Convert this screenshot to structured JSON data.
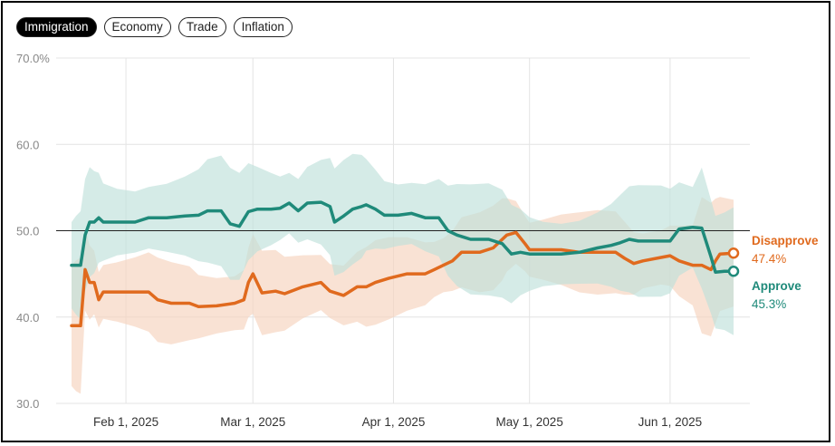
{
  "tabs": [
    {
      "label": "Immigration",
      "active": true
    },
    {
      "label": "Economy",
      "active": false
    },
    {
      "label": "Trade",
      "active": false
    },
    {
      "label": "Inflation",
      "active": false
    }
  ],
  "colors": {
    "approve": "#1f8a7a",
    "disapprove": "#e06a1e",
    "approve_band": "#bfe0da",
    "disapprove_band": "#f6d3bd"
  },
  "chart_data": {
    "type": "line",
    "title": "",
    "y_ticks": [
      "70.0%",
      "60.0",
      "50.0",
      "40.0",
      "30.0"
    ],
    "ylim": [
      30,
      70
    ],
    "x_ticks": [
      "Feb 1, 2025",
      "Mar 1, 2025",
      "Apr 1, 2025",
      "May 1, 2025",
      "Jun 1, 2025"
    ],
    "xlim": [
      "2025-01-20",
      "2025-06-17"
    ],
    "reference_line": 50,
    "grid": true,
    "series": [
      {
        "name": "Disapprove",
        "final_label": "47.4%",
        "points": [
          [
            "2025-01-20",
            39
          ],
          [
            "2025-01-21",
            39
          ],
          [
            "2025-01-22",
            39
          ],
          [
            "2025-01-23",
            45.5
          ],
          [
            "2025-01-24",
            44
          ],
          [
            "2025-01-25",
            44
          ],
          [
            "2025-01-26",
            42
          ],
          [
            "2025-01-27",
            42.9
          ],
          [
            "2025-01-30",
            42.9
          ],
          [
            "2025-02-03",
            42.9
          ],
          [
            "2025-02-06",
            42.9
          ],
          [
            "2025-02-08",
            42
          ],
          [
            "2025-02-11",
            41.6
          ],
          [
            "2025-02-15",
            41.6
          ],
          [
            "2025-02-17",
            41.2
          ],
          [
            "2025-02-21",
            41.3
          ],
          [
            "2025-02-25",
            41.6
          ],
          [
            "2025-02-27",
            42
          ],
          [
            "2025-02-28",
            44
          ],
          [
            "2025-03-01",
            45
          ],
          [
            "2025-03-03",
            42.8
          ],
          [
            "2025-03-06",
            43
          ],
          [
            "2025-03-08",
            42.7
          ],
          [
            "2025-03-12",
            43.5
          ],
          [
            "2025-03-16",
            44
          ],
          [
            "2025-03-18",
            43
          ],
          [
            "2025-03-21",
            42.5
          ],
          [
            "2025-03-24",
            43.5
          ],
          [
            "2025-03-26",
            43.5
          ],
          [
            "2025-03-28",
            44
          ],
          [
            "2025-03-31",
            44.5
          ],
          [
            "2025-04-04",
            45
          ],
          [
            "2025-04-08",
            45
          ],
          [
            "2025-04-10",
            45.5
          ],
          [
            "2025-04-12",
            46
          ],
          [
            "2025-04-14",
            46.5
          ],
          [
            "2025-04-16",
            47.5
          ],
          [
            "2025-04-20",
            47.5
          ],
          [
            "2025-04-23",
            48
          ],
          [
            "2025-04-25",
            49
          ],
          [
            "2025-04-26",
            49.5
          ],
          [
            "2025-04-28",
            49.8
          ],
          [
            "2025-04-30",
            48.5
          ],
          [
            "2025-05-01",
            47.8
          ],
          [
            "2025-05-04",
            47.8
          ],
          [
            "2025-05-08",
            47.8
          ],
          [
            "2025-05-12",
            47.5
          ],
          [
            "2025-05-16",
            47.5
          ],
          [
            "2025-05-20",
            47.5
          ],
          [
            "2025-05-22",
            46.8
          ],
          [
            "2025-05-24",
            46.2
          ],
          [
            "2025-05-26",
            46.5
          ],
          [
            "2025-05-30",
            46.9
          ],
          [
            "2025-06-01",
            47.1
          ],
          [
            "2025-06-03",
            46.5
          ],
          [
            "2025-06-06",
            46
          ],
          [
            "2025-06-08",
            46
          ],
          [
            "2025-06-10",
            45.5
          ],
          [
            "2025-06-11",
            46.5
          ],
          [
            "2025-06-12",
            47.3
          ],
          [
            "2025-06-15",
            47.4
          ]
        ]
      },
      {
        "name": "Approve",
        "final_label": "45.3%",
        "points": [
          [
            "2025-01-20",
            46
          ],
          [
            "2025-01-21",
            46
          ],
          [
            "2025-01-22",
            46
          ],
          [
            "2025-01-23",
            49.5
          ],
          [
            "2025-01-24",
            51
          ],
          [
            "2025-01-25",
            51
          ],
          [
            "2025-01-26",
            51.5
          ],
          [
            "2025-01-27",
            51
          ],
          [
            "2025-01-30",
            51
          ],
          [
            "2025-02-03",
            51
          ],
          [
            "2025-02-06",
            51.5
          ],
          [
            "2025-02-10",
            51.5
          ],
          [
            "2025-02-14",
            51.7
          ],
          [
            "2025-02-17",
            51.8
          ],
          [
            "2025-02-19",
            52.3
          ],
          [
            "2025-02-22",
            52.3
          ],
          [
            "2025-02-24",
            50.8
          ],
          [
            "2025-02-26",
            50.5
          ],
          [
            "2025-02-28",
            52.2
          ],
          [
            "2025-03-02",
            52.5
          ],
          [
            "2025-03-05",
            52.5
          ],
          [
            "2025-03-07",
            52.6
          ],
          [
            "2025-03-09",
            53.2
          ],
          [
            "2025-03-11",
            52.3
          ],
          [
            "2025-03-13",
            53.2
          ],
          [
            "2025-03-16",
            53.3
          ],
          [
            "2025-03-18",
            52.8
          ],
          [
            "2025-03-19",
            51
          ],
          [
            "2025-03-21",
            51.7
          ],
          [
            "2025-03-23",
            52.5
          ],
          [
            "2025-03-25",
            52.8
          ],
          [
            "2025-03-26",
            53
          ],
          [
            "2025-03-28",
            52.5
          ],
          [
            "2025-03-30",
            51.8
          ],
          [
            "2025-04-02",
            51.8
          ],
          [
            "2025-04-05",
            52
          ],
          [
            "2025-04-08",
            51.5
          ],
          [
            "2025-04-11",
            51.5
          ],
          [
            "2025-04-13",
            50
          ],
          [
            "2025-04-15",
            49.5
          ],
          [
            "2025-04-18",
            49
          ],
          [
            "2025-04-22",
            49
          ],
          [
            "2025-04-25",
            48.5
          ],
          [
            "2025-04-27",
            47.3
          ],
          [
            "2025-04-29",
            47.5
          ],
          [
            "2025-05-01",
            47.3
          ],
          [
            "2025-05-04",
            47.3
          ],
          [
            "2025-05-08",
            47.3
          ],
          [
            "2025-05-12",
            47.5
          ],
          [
            "2025-05-16",
            48
          ],
          [
            "2025-05-19",
            48.3
          ],
          [
            "2025-05-21",
            48.6
          ],
          [
            "2025-05-23",
            49
          ],
          [
            "2025-05-25",
            48.8
          ],
          [
            "2025-05-30",
            48.8
          ],
          [
            "2025-06-01",
            48.8
          ],
          [
            "2025-06-03",
            50.2
          ],
          [
            "2025-06-06",
            50.4
          ],
          [
            "2025-06-08",
            50.3
          ],
          [
            "2025-06-10",
            47
          ],
          [
            "2025-06-11",
            45.2
          ],
          [
            "2025-06-13",
            45.3
          ],
          [
            "2025-06-15",
            45.3
          ]
        ]
      }
    ]
  }
}
